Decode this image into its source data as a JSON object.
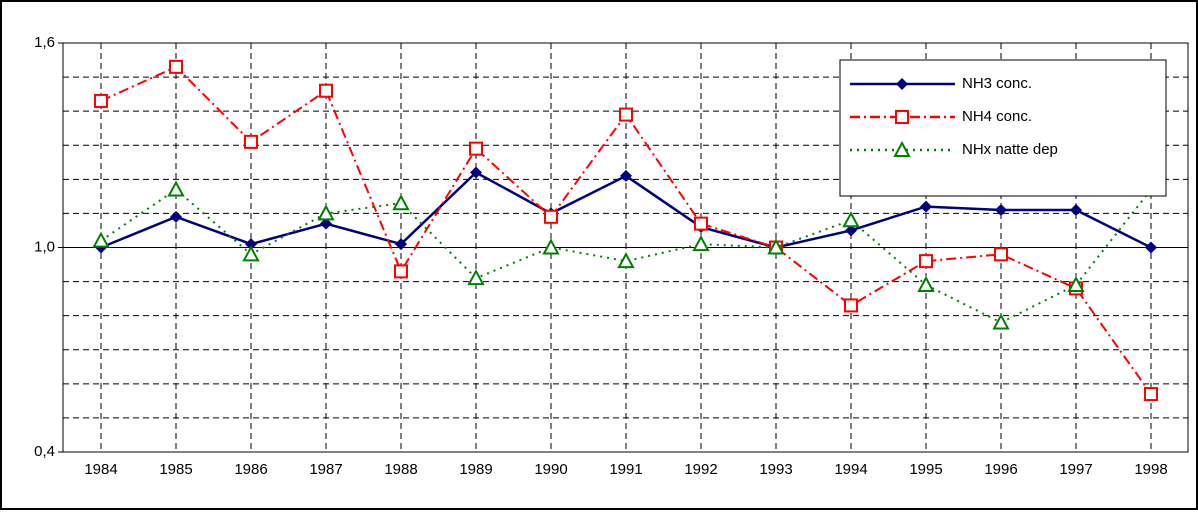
{
  "chart_data": {
    "type": "line",
    "categories": [
      "1984",
      "1985",
      "1986",
      "1987",
      "1988",
      "1989",
      "1990",
      "1991",
      "1992",
      "1993",
      "1994",
      "1995",
      "1996",
      "1997",
      "1998"
    ],
    "series": [
      {
        "name": "NH3 conc.",
        "color": "#000080",
        "marker": "diamond",
        "dash": "solid",
        "values": [
          1.0,
          1.09,
          1.01,
          1.07,
          1.01,
          1.22,
          1.1,
          1.21,
          1.06,
          1.0,
          1.05,
          1.12,
          1.11,
          1.11,
          1.0
        ]
      },
      {
        "name": "NH4 conc.",
        "color": "#ff0000",
        "marker": "square",
        "dash": "dashdot",
        "values": [
          1.43,
          1.53,
          1.31,
          1.46,
          0.93,
          1.29,
          1.09,
          1.39,
          1.07,
          1.0,
          0.83,
          0.96,
          0.98,
          0.88,
          0.57
        ]
      },
      {
        "name": "NHx natte dep",
        "color": "#008000",
        "marker": "triangle",
        "dash": "dot",
        "values": [
          1.02,
          1.17,
          0.98,
          1.1,
          1.13,
          0.91,
          1.0,
          0.96,
          1.01,
          1.0,
          1.08,
          0.89,
          0.78,
          0.89,
          1.17
        ]
      }
    ],
    "ylim": [
      0.4,
      1.6
    ],
    "yticks": [
      {
        "value": 0.4,
        "label": "0,4"
      },
      {
        "value": 1.0,
        "label": "1,0"
      },
      {
        "value": 1.6,
        "label": "1,6"
      }
    ],
    "yminor": [
      0.5,
      0.6,
      0.7,
      0.8,
      0.9,
      1.1,
      1.2,
      1.3,
      1.4,
      1.5
    ],
    "grid": true,
    "legend": "upper right"
  }
}
